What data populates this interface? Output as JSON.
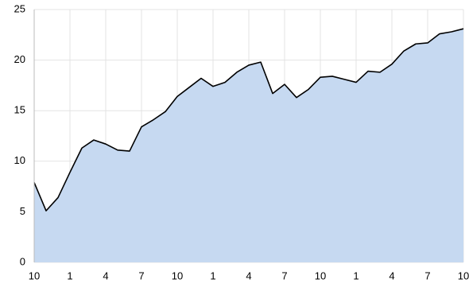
{
  "chart_data": {
    "type": "area",
    "categories": [
      "10",
      null,
      null,
      "1",
      null,
      null,
      "4",
      null,
      null,
      "7",
      null,
      null,
      "10",
      null,
      null,
      "1",
      null,
      null,
      "4",
      null,
      null,
      "7",
      null,
      null,
      "10",
      null,
      null,
      "1",
      null,
      null,
      "4",
      null,
      null,
      "7",
      null,
      null,
      "10"
    ],
    "values": [
      7.9,
      5.1,
      6.4,
      8.9,
      11.3,
      12.1,
      11.7,
      11.1,
      11.0,
      13.4,
      14.1,
      14.9,
      16.4,
      17.3,
      18.2,
      17.4,
      17.8,
      18.8,
      19.5,
      19.8,
      16.7,
      17.6,
      16.3,
      17.1,
      18.3,
      18.4,
      18.1,
      17.8,
      18.9,
      18.8,
      19.6,
      20.9,
      21.6,
      21.7,
      22.6,
      22.8,
      23.1
    ],
    "color": "#c6d9f1",
    "line_color": "#000000",
    "ylim": [
      0,
      25
    ],
    "yticks": [
      0,
      5,
      10,
      15,
      20,
      25
    ],
    "grid": true
  }
}
